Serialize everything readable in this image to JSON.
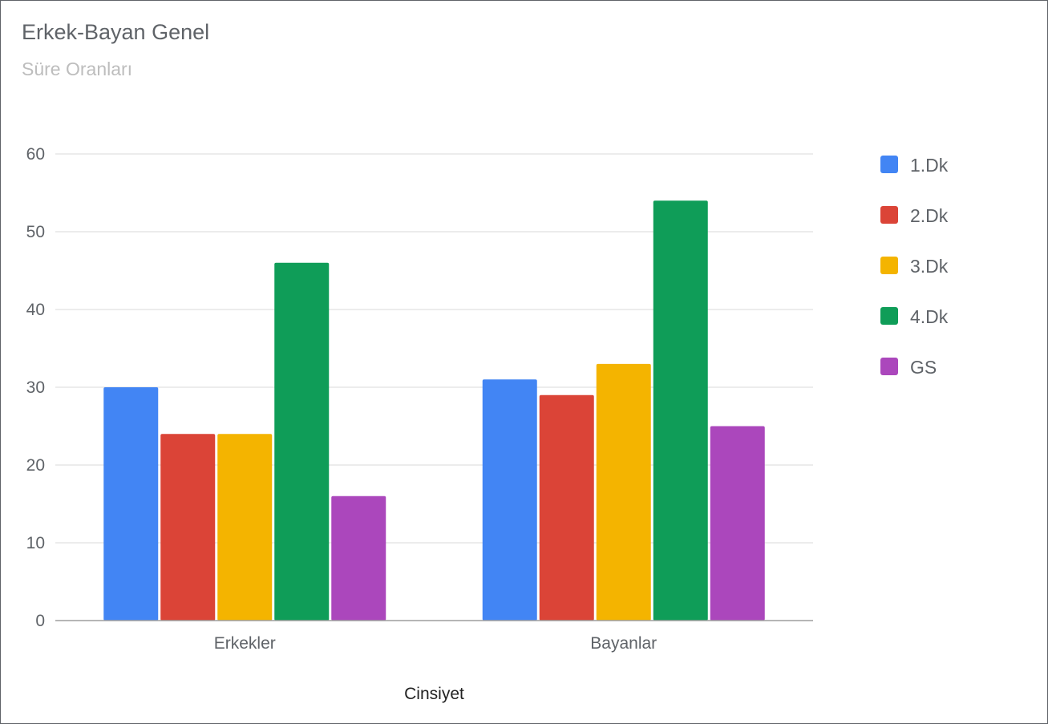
{
  "chart_data": {
    "type": "bar",
    "title": "Erkek-Bayan Genel",
    "subtitle": "Süre Oranları",
    "xlabel": "Cinsiyet",
    "ylabel": "",
    "categories": [
      "Erkekler",
      "Bayanlar"
    ],
    "ylim": [
      0,
      60
    ],
    "yticks": [
      0,
      10,
      20,
      30,
      40,
      50,
      60
    ],
    "grid": true,
    "legend_position": "right",
    "series": [
      {
        "name": "1.Dk",
        "color": "#4285f4",
        "values": [
          30,
          31
        ]
      },
      {
        "name": "2.Dk",
        "color": "#db4437",
        "values": [
          24,
          29
        ]
      },
      {
        "name": "3.Dk",
        "color": "#f4b400",
        "values": [
          24,
          33
        ]
      },
      {
        "name": "4.Dk",
        "color": "#0f9d58",
        "values": [
          46,
          54
        ]
      },
      {
        "name": "GS",
        "color": "#ab47bc",
        "values": [
          16,
          25
        ]
      }
    ]
  }
}
